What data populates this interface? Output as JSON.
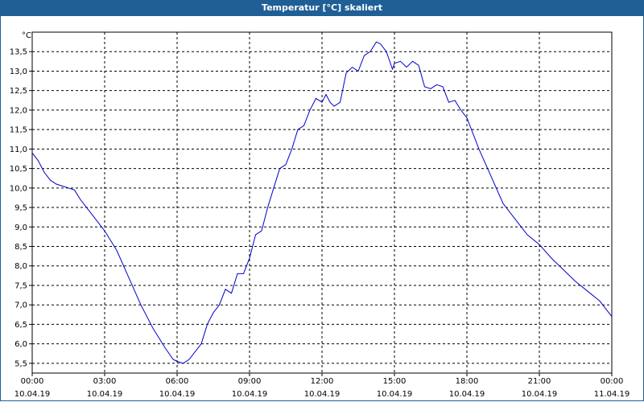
{
  "title": "Temperatur [°C] skaliert",
  "chart_data": {
    "type": "line",
    "title": "Temperatur [°C] skaliert",
    "ylabel": "°C",
    "xlabel": "",
    "ylim": [
      5.25,
      14.0
    ],
    "xlim_hours": [
      0,
      24
    ],
    "grid": true,
    "y_ticks": [
      "5,5",
      "6,0",
      "6,5",
      "7,0",
      "7,5",
      "8,0",
      "8,5",
      "9,0",
      "9,5",
      "10,0",
      "10,5",
      "11,0",
      "11,5",
      "12,0",
      "12,5",
      "13,0",
      "13,5"
    ],
    "y_tick_values": [
      5.5,
      6.0,
      6.5,
      7.0,
      7.5,
      8.0,
      8.5,
      9.0,
      9.5,
      10.0,
      10.5,
      11.0,
      11.5,
      12.0,
      12.5,
      13.0,
      13.5
    ],
    "x_ticks": [
      {
        "time": "00:00",
        "date": "10.04.19"
      },
      {
        "time": "03:00",
        "date": "10.04.19"
      },
      {
        "time": "06:00",
        "date": "10.04.19"
      },
      {
        "time": "09:00",
        "date": "10.04.19"
      },
      {
        "time": "12:00",
        "date": "10.04.19"
      },
      {
        "time": "15:00",
        "date": "10.04.19"
      },
      {
        "time": "18:00",
        "date": "10.04.19"
      },
      {
        "time": "21:00",
        "date": "10.04.19"
      },
      {
        "time": "00:00",
        "date": "11.04.19"
      }
    ],
    "series": [
      {
        "color": "#0000cc",
        "x": [
          "10.04.19 00:00",
          "10.04.19 00:15",
          "10.04.19 00:30",
          "10.04.19 00:45",
          "10.04.19 01:00",
          "10.04.19 01:15",
          "10.04.19 01:30",
          "10.04.19 01:45",
          "10.04.19 02:00",
          "10.04.19 02:30",
          "10.04.19 03:00",
          "10.04.19 03:30",
          "10.04.19 04:00",
          "10.04.19 04:30",
          "10.04.19 05:00",
          "10.04.19 05:30",
          "10.04.19 05:50",
          "10.04.19 06:00",
          "10.04.19 06:15",
          "10.04.19 06:30",
          "10.04.19 06:45",
          "10.04.19 07:00",
          "10.04.19 07:15",
          "10.04.19 07:30",
          "10.04.19 07:45",
          "10.04.19 08:00",
          "10.04.19 08:15",
          "10.04.19 08:30",
          "10.04.19 08:45",
          "10.04.19 09:00",
          "10.04.19 09:15",
          "10.04.19 09:30",
          "10.04.19 09:45",
          "10.04.19 10:00",
          "10.04.19 10:15",
          "10.04.19 10:30",
          "10.04.19 10:45",
          "10.04.19 11:00",
          "10.04.19 11:15",
          "10.04.19 11:30",
          "10.04.19 11:45",
          "10.04.19 12:00",
          "10.04.19 12:10",
          "10.04.19 12:20",
          "10.04.19 12:30",
          "10.04.19 12:45",
          "10.04.19 13:00",
          "10.04.19 13:15",
          "10.04.19 13:30",
          "10.04.19 13:45",
          "10.04.19 14:00",
          "10.04.19 14:15",
          "10.04.19 14:25",
          "10.04.19 14:40",
          "10.04.19 14:55",
          "10.04.19 15:00",
          "10.04.19 15:15",
          "10.04.19 15:30",
          "10.04.19 15:45",
          "10.04.19 16:00",
          "10.04.19 16:15",
          "10.04.19 16:30",
          "10.04.19 16:45",
          "10.04.19 17:00",
          "10.04.19 17:15",
          "10.04.19 17:30",
          "10.04.19 17:45",
          "10.04.19 18:00",
          "10.04.19 18:30",
          "10.04.19 19:00",
          "10.04.19 19:30",
          "10.04.19 20:00",
          "10.04.19 20:30",
          "10.04.19 21:00",
          "10.04.19 21:30",
          "10.04.19 22:00",
          "10.04.19 22:30",
          "10.04.19 23:00",
          "10.04.19 23:30",
          "11.04.19 00:00"
        ],
        "values": [
          10.9,
          10.7,
          10.4,
          10.2,
          10.1,
          10.05,
          10.0,
          9.95,
          9.7,
          9.3,
          8.9,
          8.4,
          7.7,
          7.0,
          6.4,
          5.9,
          5.6,
          5.55,
          5.5,
          5.6,
          5.8,
          6.0,
          6.5,
          6.8,
          7.0,
          7.4,
          7.3,
          7.8,
          7.8,
          8.2,
          8.8,
          8.9,
          9.5,
          10.0,
          10.5,
          10.6,
          11.0,
          11.5,
          11.6,
          12.0,
          12.3,
          12.2,
          12.4,
          12.2,
          12.1,
          12.2,
          12.95,
          13.1,
          13.0,
          13.4,
          13.5,
          13.75,
          13.7,
          13.5,
          13.05,
          13.2,
          13.25,
          13.1,
          13.25,
          13.15,
          12.6,
          12.55,
          12.65,
          12.6,
          12.2,
          12.25,
          12.0,
          11.8,
          11.0,
          10.3,
          9.6,
          9.2,
          8.8,
          8.55,
          8.2,
          7.9,
          7.6,
          7.35,
          7.1,
          6.7
        ]
      }
    ]
  }
}
